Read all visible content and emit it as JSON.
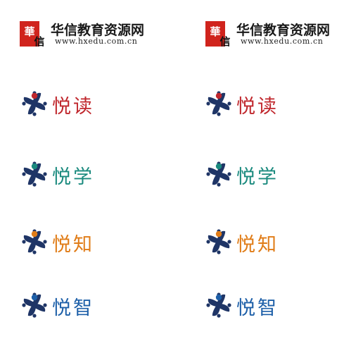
{
  "header": {
    "logo_mark_text": "華信",
    "name": "华信教育资源网",
    "url": "www.hxedu.com.cn"
  },
  "brands": [
    {
      "label": "悦读",
      "color": "#c0272d",
      "head_color": "#c0272d"
    },
    {
      "label": "悦学",
      "color": "#1a8a7e",
      "head_color": "#1a8a7e"
    },
    {
      "label": "悦知",
      "color": "#e07c17",
      "head_color": "#e07c17"
    },
    {
      "label": "悦智",
      "color": "#1d5fa8",
      "head_color": "#1d5fa8"
    }
  ],
  "icon_colors": {
    "petal": "#1f3566",
    "seal_red": "#d0241d"
  },
  "icon_names": {
    "seal": "huaxin-seal-icon",
    "people": "people-circle-icon"
  }
}
